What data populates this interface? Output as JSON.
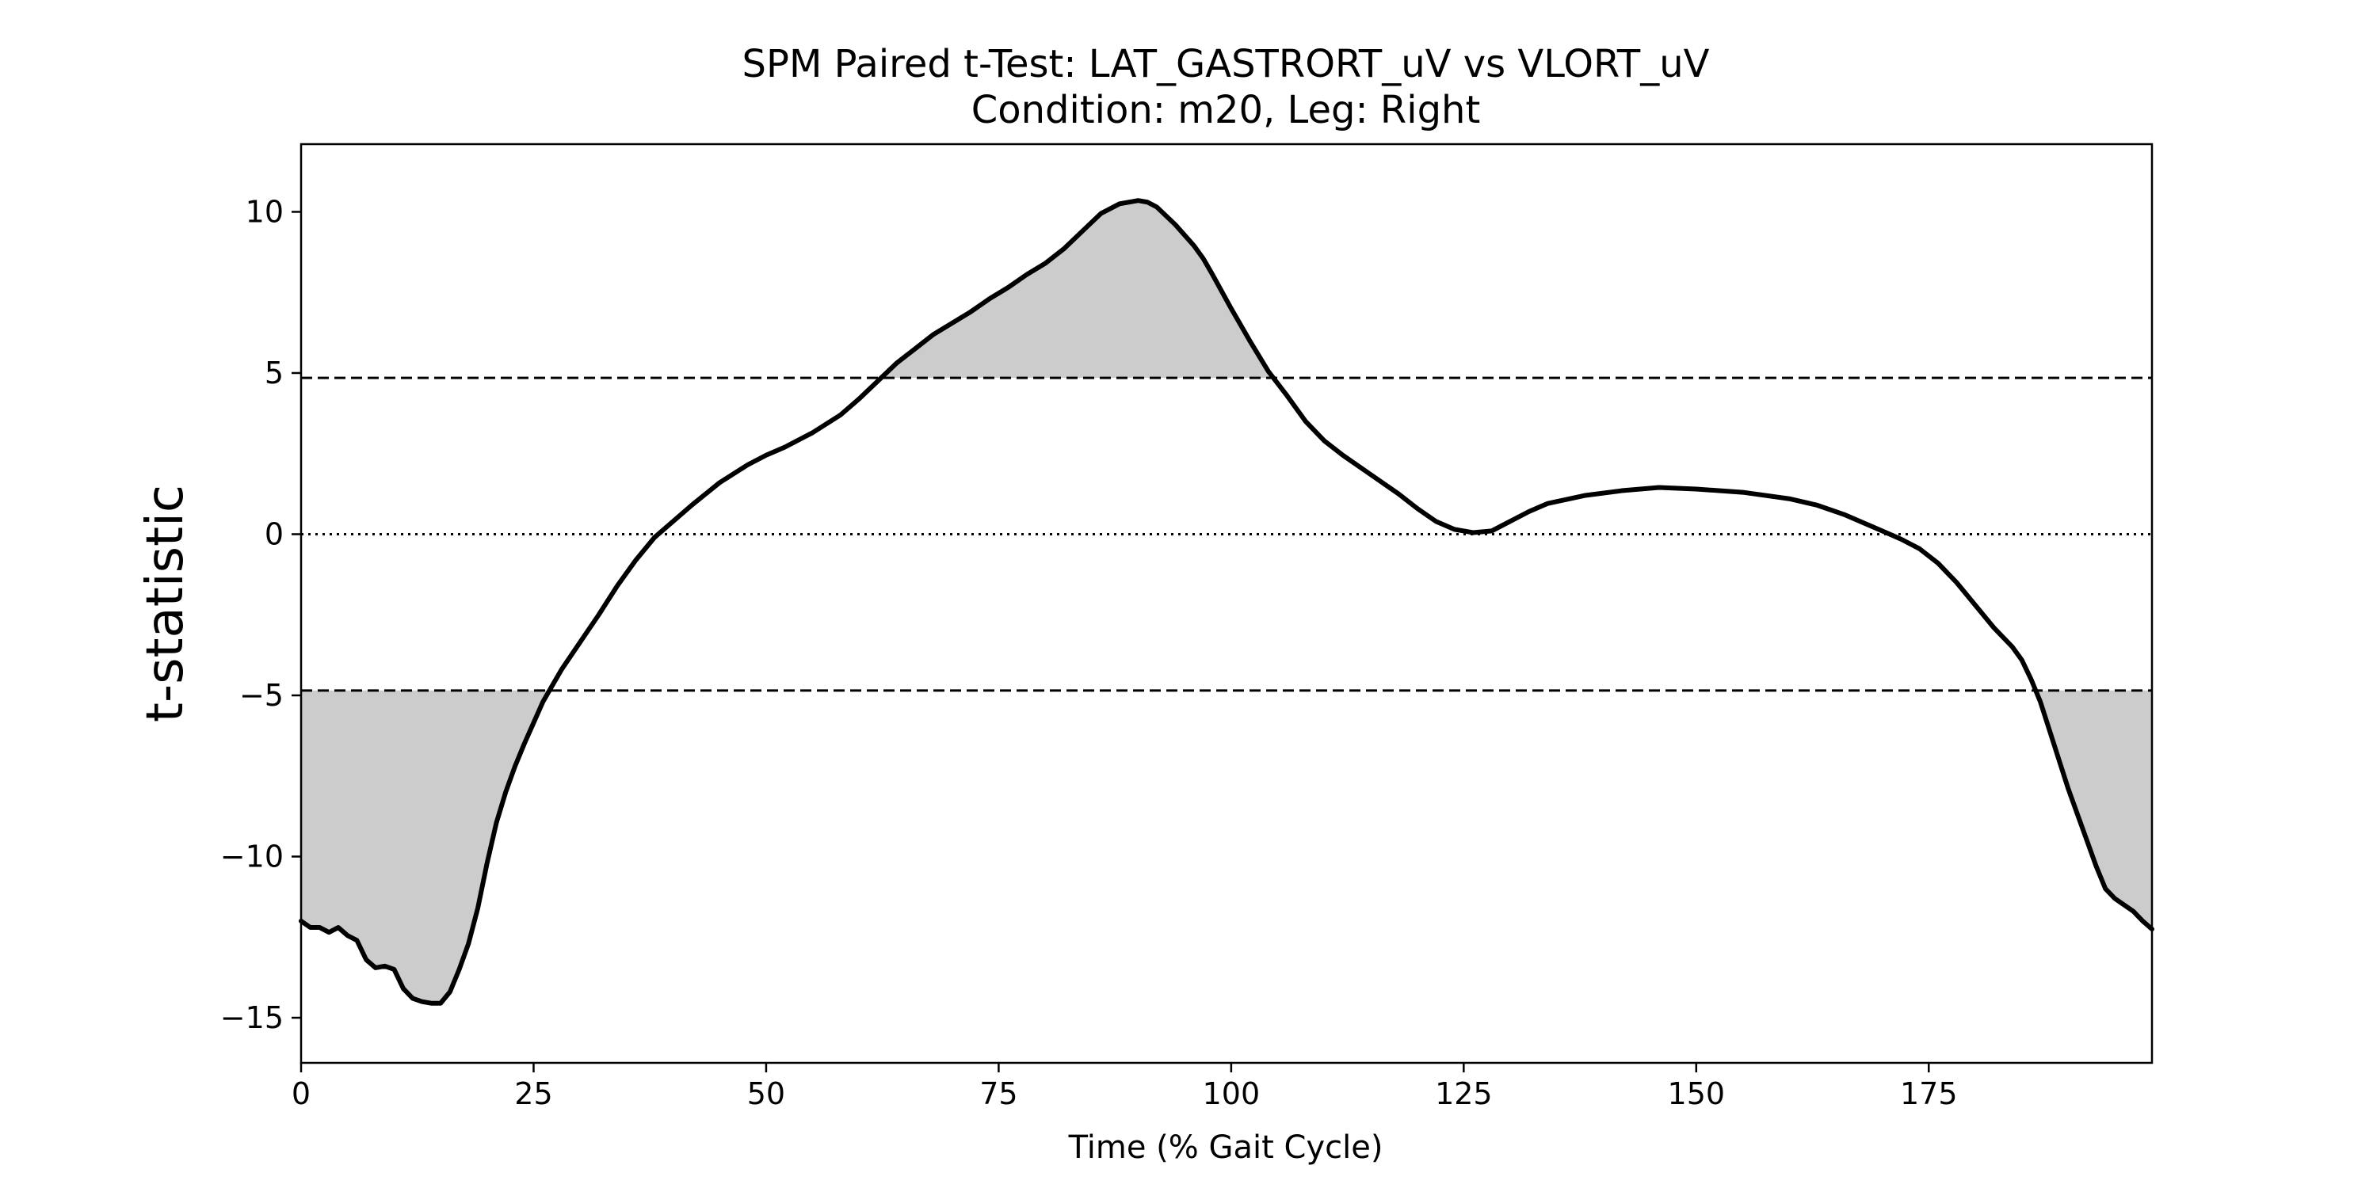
{
  "chart_data": {
    "type": "line",
    "title": "SPM Paired t-Test: LAT_GASTRORT_uV vs VLORT_uV",
    "subtitle": "Condition: m20, Leg: Right",
    "xlabel": "Time (% Gait Cycle)",
    "ylabel": "t-statistic",
    "xlim": [
      0,
      199
    ],
    "ylim": [
      -16.4,
      12.1
    ],
    "x_ticks": [
      0,
      25,
      50,
      75,
      100,
      125,
      150,
      175
    ],
    "x_tick_labels": [
      "0",
      "25",
      "50",
      "75",
      "100",
      "125",
      "150",
      "175"
    ],
    "y_ticks": [
      -15,
      -10,
      -5,
      0,
      5,
      10
    ],
    "y_tick_labels": [
      "−15",
      "−10",
      "−5",
      "0",
      "5",
      "10"
    ],
    "grid": false,
    "threshold": 4.85,
    "reference_line": 0,
    "line_color": "#000000",
    "fill_color": "#cccccc",
    "series": [
      {
        "x": [
          0,
          1,
          2,
          3,
          4,
          5,
          6,
          7,
          8,
          9,
          10,
          11,
          12,
          13,
          14,
          15,
          16,
          17,
          18,
          19,
          20,
          21,
          22,
          23,
          24,
          25,
          26,
          27,
          28,
          30,
          32,
          34,
          36,
          38,
          40,
          42,
          45,
          48,
          50,
          52,
          55,
          58,
          60,
          62,
          64,
          66,
          68,
          70,
          72,
          74,
          76,
          78,
          80,
          82,
          84,
          86,
          88,
          90,
          91,
          92,
          94,
          96,
          97,
          98,
          100,
          102,
          104,
          106,
          108,
          110,
          112,
          115,
          118,
          120,
          122,
          124,
          126,
          128,
          130,
          132,
          134,
          138,
          142,
          146,
          150,
          155,
          160,
          163,
          166,
          170,
          172,
          174,
          176,
          178,
          180,
          182,
          184,
          185,
          186,
          187,
          188,
          189,
          190,
          191,
          192,
          193,
          194,
          195,
          196,
          197,
          198,
          199
        ],
        "y": [
          -12.0,
          -12.2,
          -12.2,
          -12.35,
          -12.2,
          -12.45,
          -12.6,
          -13.2,
          -13.45,
          -13.4,
          -13.5,
          -14.1,
          -14.4,
          -14.5,
          -14.55,
          -14.55,
          -14.2,
          -13.5,
          -12.7,
          -11.6,
          -10.2,
          -8.95,
          -8.0,
          -7.2,
          -6.5,
          -5.85,
          -5.2,
          -4.7,
          -4.2,
          -3.35,
          -2.5,
          -1.6,
          -0.8,
          -0.1,
          0.4,
          0.9,
          1.6,
          2.15,
          2.45,
          2.7,
          3.15,
          3.7,
          4.2,
          4.75,
          5.3,
          5.75,
          6.2,
          6.55,
          6.9,
          7.3,
          7.65,
          8.05,
          8.4,
          8.85,
          9.4,
          9.95,
          10.25,
          10.35,
          10.3,
          10.15,
          9.6,
          8.95,
          8.55,
          8.05,
          7.0,
          6.0,
          5.05,
          4.3,
          3.5,
          2.9,
          2.45,
          1.85,
          1.25,
          0.8,
          0.4,
          0.15,
          0.05,
          0.1,
          0.4,
          0.7,
          0.95,
          1.2,
          1.35,
          1.45,
          1.4,
          1.3,
          1.1,
          0.9,
          0.6,
          0.1,
          -0.15,
          -0.45,
          -0.9,
          -1.5,
          -2.2,
          -2.9,
          -3.5,
          -3.9,
          -4.5,
          -5.2,
          -6.1,
          -7.0,
          -7.9,
          -8.7,
          -9.5,
          -10.3,
          -11.0,
          -11.3,
          -11.5,
          -11.7,
          -12.0,
          -12.25
        ]
      }
    ]
  }
}
